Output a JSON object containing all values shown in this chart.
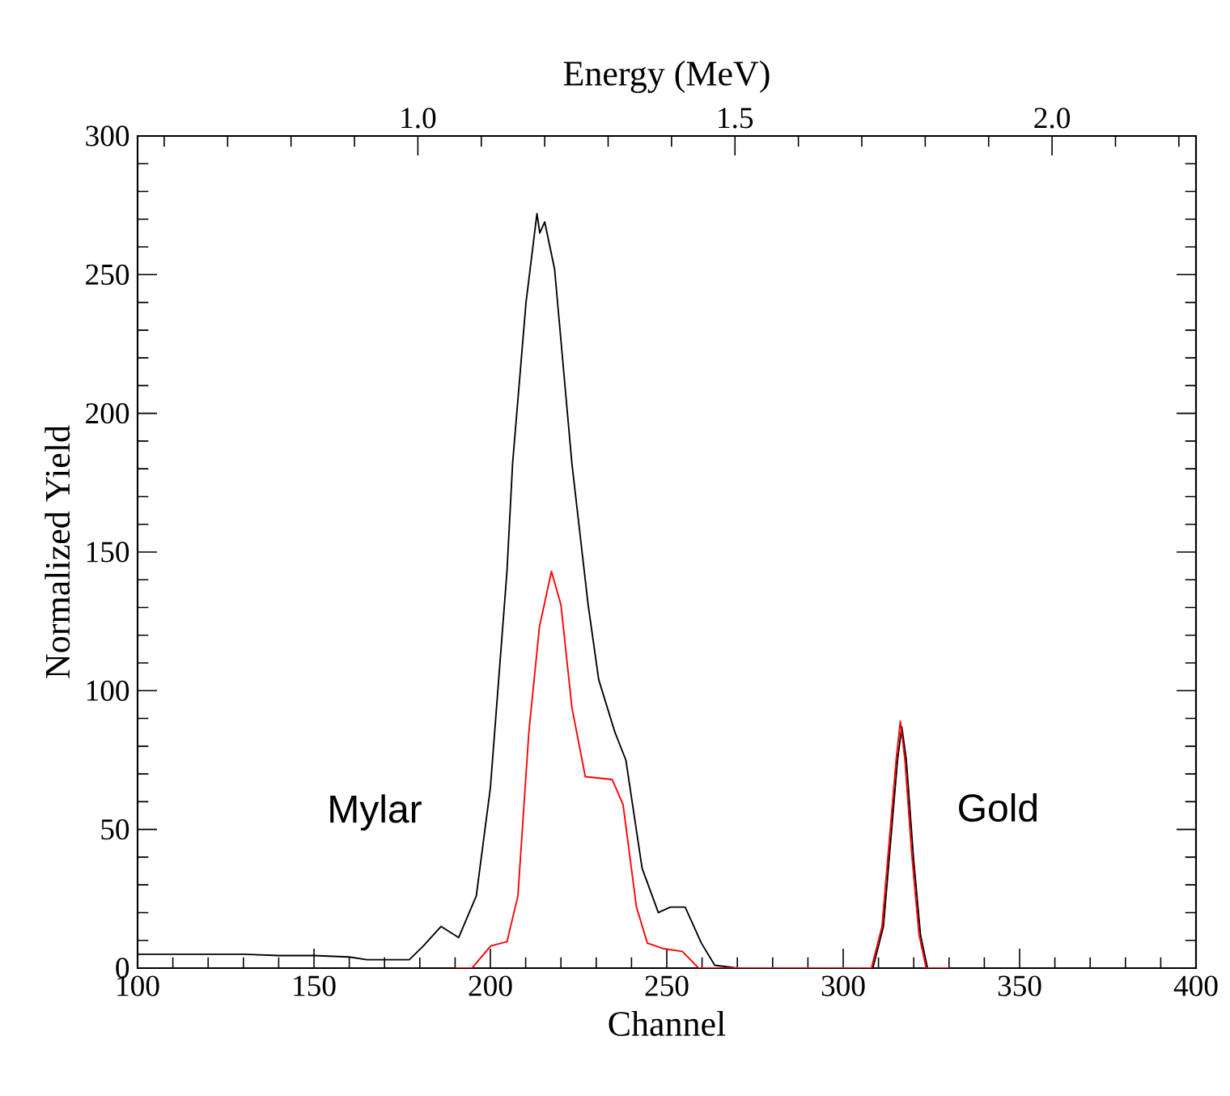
{
  "chart_data": {
    "type": "line",
    "xlabel": "Channel",
    "ylabel": "Normalized Yield",
    "x2label": "Energy (MeV)",
    "xlim": [
      100,
      400
    ],
    "ylim": [
      0,
      300
    ],
    "x2lim": [
      0.558,
      2.227
    ],
    "xticks": [
      100,
      150,
      200,
      250,
      300,
      350,
      400,
      {
        "value": 110,
        "label": null
      },
      {
        "value": 120,
        "label": null
      },
      {
        "value": 130,
        "label": null
      },
      {
        "value": 140,
        "label": null
      },
      {
        "value": 160,
        "label": null
      },
      {
        "value": 170,
        "label": null
      },
      {
        "value": 180,
        "label": null
      },
      {
        "value": 190,
        "label": null
      },
      {
        "value": 210,
        "label": null
      },
      {
        "value": 220,
        "label": null
      },
      {
        "value": 230,
        "label": null
      },
      {
        "value": 240,
        "label": null
      },
      {
        "value": 260,
        "label": null
      },
      {
        "value": 270,
        "label": null
      },
      {
        "value": 280,
        "label": null
      },
      {
        "value": 290,
        "label": null
      },
      {
        "value": 310,
        "label": null
      },
      {
        "value": 320,
        "label": null
      },
      {
        "value": 330,
        "label": null
      },
      {
        "value": 340,
        "label": null
      },
      {
        "value": 360,
        "label": null
      },
      {
        "value": 370,
        "label": null
      },
      {
        "value": 380,
        "label": null
      },
      {
        "value": 390,
        "label": null
      }
    ],
    "yticks": [
      0,
      50,
      100,
      150,
      200,
      250,
      300,
      {
        "value": 10,
        "label": null
      },
      {
        "value": 20,
        "label": null
      },
      {
        "value": 30,
        "label": null
      },
      {
        "value": 40,
        "label": null
      },
      {
        "value": 60,
        "label": null
      },
      {
        "value": 70,
        "label": null
      },
      {
        "value": 80,
        "label": null
      },
      {
        "value": 90,
        "label": null
      },
      {
        "value": 110,
        "label": null
      },
      {
        "value": 120,
        "label": null
      },
      {
        "value": 130,
        "label": null
      },
      {
        "value": 140,
        "label": null
      },
      {
        "value": 160,
        "label": null
      },
      {
        "value": 170,
        "label": null
      },
      {
        "value": 180,
        "label": null
      },
      {
        "value": 190,
        "label": null
      },
      {
        "value": 210,
        "label": null
      },
      {
        "value": 220,
        "label": null
      },
      {
        "value": 230,
        "label": null
      },
      {
        "value": 240,
        "label": null
      },
      {
        "value": 260,
        "label": null
      },
      {
        "value": 270,
        "label": null
      },
      {
        "value": 280,
        "label": null
      },
      {
        "value": 290,
        "label": null
      }
    ],
    "x2ticks": [
      {
        "value": 1.0,
        "label": "1.0"
      },
      {
        "value": 1.5,
        "label": "1.5"
      },
      {
        "value": 2.0,
        "label": "2.0"
      },
      {
        "value": 0.6,
        "label": null
      },
      {
        "value": 0.7,
        "label": null
      },
      {
        "value": 0.8,
        "label": null
      },
      {
        "value": 0.9,
        "label": null
      },
      {
        "value": 1.1,
        "label": null
      },
      {
        "value": 1.2,
        "label": null
      },
      {
        "value": 1.3,
        "label": null
      },
      {
        "value": 1.4,
        "label": null
      },
      {
        "value": 1.6,
        "label": null
      },
      {
        "value": 1.7,
        "label": null
      },
      {
        "value": 1.8,
        "label": null
      },
      {
        "value": 1.9,
        "label": null
      },
      {
        "value": 2.1,
        "label": null
      },
      {
        "value": 2.2,
        "label": null
      }
    ],
    "marker": "none",
    "line_style": "solid",
    "series": [
      {
        "color": "#000000",
        "x": [
          100,
          110,
          120,
          130,
          140,
          150,
          160,
          165,
          170,
          177,
          181,
          186,
          191,
          196,
          200,
          204.7,
          206.3,
          210.1,
          213.2,
          214,
          215.4,
          218.2,
          223.1,
          227.7,
          230.7,
          235.3,
          238.4,
          243,
          247.6,
          251,
          255.2,
          259.8,
          263.6,
          270,
          290,
          305,
          308.4,
          311.4,
          313.4,
          315.4,
          316.6,
          317.9,
          319.9,
          321.9,
          323.9,
          330
        ],
        "values": [
          5,
          5,
          5,
          5,
          4.5,
          4.5,
          4,
          3,
          3,
          3,
          8,
          15,
          11,
          26,
          65,
          143,
          182,
          240,
          272,
          265,
          269,
          252,
          182,
          131,
          104,
          85,
          75,
          36,
          20,
          22,
          22,
          9,
          1,
          0,
          0,
          0,
          0,
          15,
          45,
          75,
          87,
          75,
          40,
          12,
          0,
          0
        ]
      },
      {
        "color": "#ff0000",
        "x": [
          190,
          194.8,
          200.1,
          204.7,
          207.8,
          210.9,
          213.9,
          217.3,
          220,
          223.1,
          226.9,
          234.5,
          237.6,
          241.4,
          244.5,
          249,
          254.4,
          259,
          270,
          300,
          308,
          311,
          313,
          315,
          316.2,
          317.5,
          319.5,
          321.5,
          323.5,
          330
        ],
        "values": [
          0,
          0,
          8,
          9.5,
          26,
          85,
          123,
          143,
          131,
          94,
          69,
          68,
          59,
          22,
          9,
          7,
          6,
          0,
          0,
          0,
          0,
          15,
          45,
          75,
          89,
          75,
          40,
          12,
          0,
          0
        ]
      }
    ],
    "annotations": [
      "Mylar",
      "Gold"
    ]
  }
}
